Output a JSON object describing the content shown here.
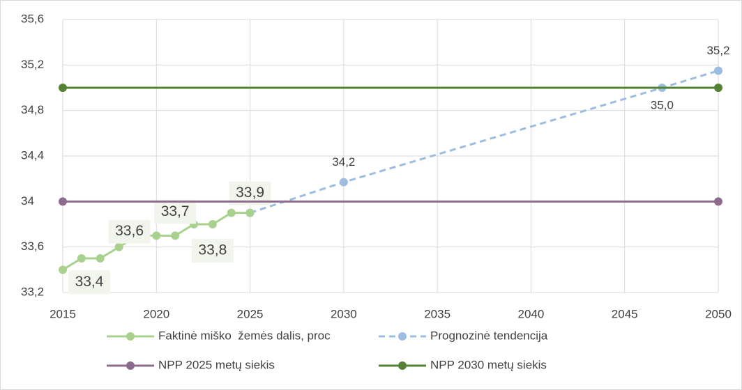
{
  "chart_data": {
    "type": "line",
    "xlim": [
      2015,
      2050
    ],
    "xticks": [
      2015,
      2020,
      2025,
      2030,
      2035,
      2040,
      2045,
      2050
    ],
    "ylim": [
      33.2,
      35.6
    ],
    "yticks": [
      {
        "value": 33.2,
        "label": "33,2"
      },
      {
        "value": 33.6,
        "label": "33,6"
      },
      34,
      {
        "value": 34.4,
        "label": "34,4"
      },
      {
        "value": 34.8,
        "label": "34,8"
      },
      {
        "value": 35.2,
        "label": "35,2"
      },
      {
        "value": 35.6,
        "label": "35,6"
      }
    ],
    "grid": true,
    "series": [
      {
        "name": "Prognozinė tendencija",
        "color": "#9dbde0",
        "dashed": true,
        "x": [
          2025,
          2030,
          2047,
          2050
        ],
        "values": [
          33.9,
          34.17,
          35.0,
          35.15
        ],
        "value_labels": [
          null,
          "34,2",
          "35,0",
          "35,2"
        ]
      },
      {
        "name": "Faktinė miško  žemės dalis, proc",
        "color": "#a9d18e",
        "x": [
          2015,
          2016,
          2017,
          2018,
          2019,
          2020,
          2021,
          2022,
          2023,
          2024,
          2025
        ],
        "values": [
          33.4,
          33.5,
          33.5,
          33.6,
          33.7,
          33.7,
          33.7,
          33.8,
          33.8,
          33.9,
          33.9
        ],
        "value_labels": [
          "33,4",
          null,
          null,
          "33,6",
          null,
          null,
          "33,7",
          null,
          "33,8",
          null,
          "33,9"
        ]
      },
      {
        "name": "NPP 2025 metų siekis",
        "color": "#8c6b8c",
        "x": [
          2015,
          2050
        ],
        "values": [
          34,
          34
        ]
      },
      {
        "name": "NPP 2030 metų siekis",
        "color": "#548235",
        "x": [
          2015,
          2050
        ],
        "values": [
          35,
          35
        ]
      }
    ]
  }
}
